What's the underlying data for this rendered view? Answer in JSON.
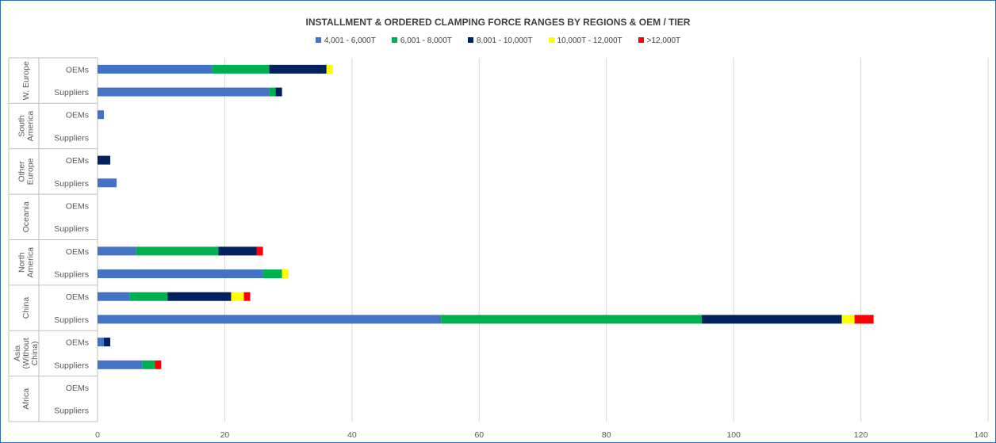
{
  "chart_data": {
    "type": "bar",
    "orientation": "horizontal",
    "stacked": true,
    "title": "INSTALLMENT & ORDERED CLAMPING FORCE RANGES BY REGIONS & OEM / TIER",
    "xlim": [
      0,
      140
    ],
    "xticks": [
      0,
      20,
      40,
      60,
      80,
      100,
      120,
      140
    ],
    "grid": "vertical",
    "legend_position": "top",
    "groups": [
      {
        "label": [
          "W. Europe"
        ],
        "categories": [
          "OEMs",
          "Suppliers"
        ]
      },
      {
        "label": [
          "South",
          "America"
        ],
        "categories": [
          "OEMs",
          "Suppliers"
        ]
      },
      {
        "label": [
          "Other",
          "Europe"
        ],
        "categories": [
          "OEMs",
          "Suppliers"
        ]
      },
      {
        "label": [
          "Oceania"
        ],
        "categories": [
          "OEMs",
          "Suppliers"
        ]
      },
      {
        "label": [
          "North",
          "America"
        ],
        "categories": [
          "OEMs",
          "Suppliers"
        ]
      },
      {
        "label": [
          "China"
        ],
        "categories": [
          "OEMs",
          "Suppliers"
        ]
      },
      {
        "label": [
          "Asia",
          "(Without",
          "China)"
        ],
        "categories": [
          "OEMs",
          "Suppliers"
        ]
      },
      {
        "label": [
          "Africa"
        ],
        "categories": [
          "OEMs",
          "Suppliers"
        ]
      }
    ],
    "series": [
      {
        "name": "4,001 - 6,000T",
        "color": "#4472c4",
        "values": [
          18,
          27,
          1,
          0,
          0,
          3,
          0,
          0,
          6,
          26,
          5,
          54,
          1,
          7,
          0,
          0
        ]
      },
      {
        "name": "6,001 - 8,000T",
        "color": "#00b050",
        "values": [
          9,
          1,
          0,
          0,
          0,
          0,
          0,
          0,
          13,
          3,
          6,
          41,
          0,
          2,
          0,
          0
        ]
      },
      {
        "name": "8,001 - 10,000T",
        "color": "#002060",
        "values": [
          9,
          1,
          0,
          0,
          2,
          0,
          0,
          0,
          6,
          0,
          10,
          22,
          1,
          0,
          0,
          0
        ]
      },
      {
        "name": "10,000T - 12,000T",
        "color": "#ffff00",
        "values": [
          1,
          0,
          0,
          0,
          0,
          0,
          0,
          0,
          0,
          1,
          2,
          2,
          0,
          0,
          0,
          0
        ]
      },
      {
        "name": ">12,000T",
        "color": "#ff0000",
        "values": [
          0,
          0,
          0,
          0,
          0,
          0,
          0,
          0,
          1,
          0,
          1,
          3,
          0,
          1,
          0,
          0
        ]
      }
    ]
  }
}
